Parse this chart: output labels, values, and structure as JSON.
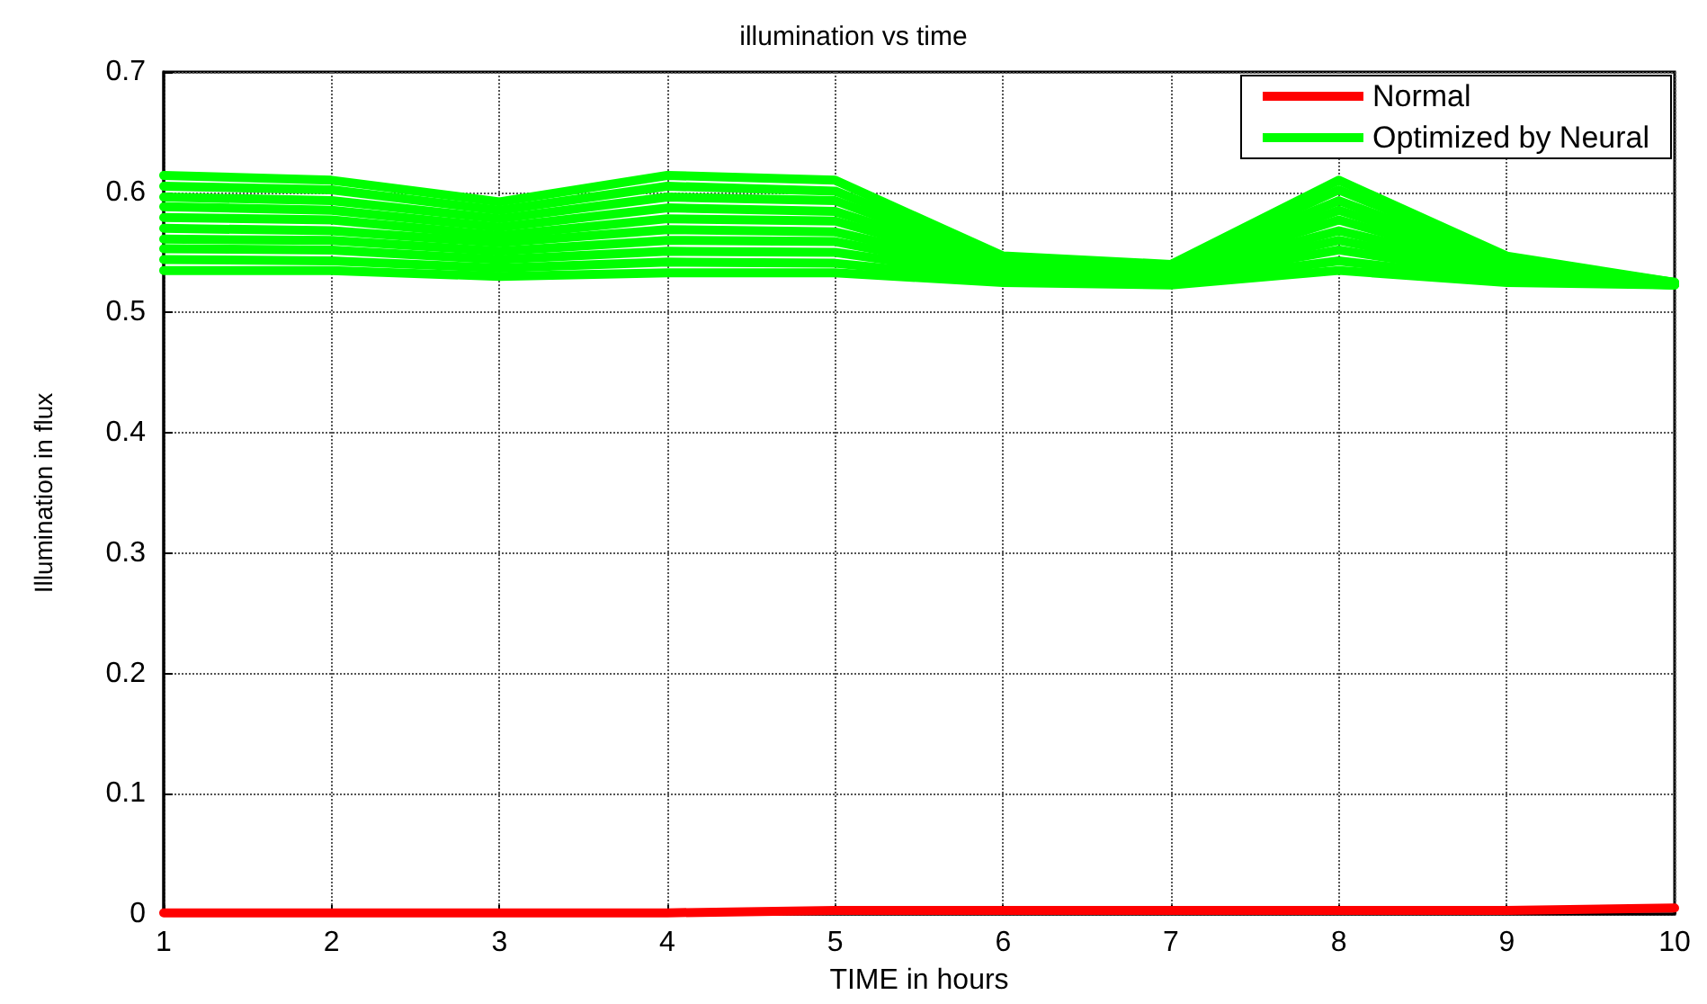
{
  "chart_data": {
    "type": "line",
    "title": "illumination vs time",
    "xlabel": "TIME in hours",
    "ylabel": "Illumination in flux",
    "x": [
      1,
      2,
      3,
      4,
      5,
      6,
      7,
      8,
      9,
      10
    ],
    "xlim": [
      1,
      10
    ],
    "xticks": [
      1,
      2,
      3,
      4,
      5,
      6,
      7,
      8,
      9,
      10
    ],
    "ylim": [
      0,
      0.7
    ],
    "yticks": [
      0,
      0.1,
      0.2,
      0.3,
      0.4,
      0.5,
      0.6,
      0.7
    ],
    "grid": true,
    "legend": "top right",
    "marker": "none",
    "line_style": "solid",
    "series": [
      {
        "name": "Normal",
        "color": "#ff0000",
        "values": [
          0.001,
          0.001,
          0.001,
          0.001,
          0.003,
          0.003,
          0.003,
          0.003,
          0.003,
          0.005
        ]
      },
      {
        "name": "Optimized by Neural",
        "color": "#00ff00",
        "values": [
          0.614,
          0.61,
          0.592,
          0.614,
          0.61,
          0.547,
          0.54,
          0.61,
          0.547,
          0.525
        ]
      },
      {
        "color": "#00ff00",
        "values": [
          0.605,
          0.602,
          0.585,
          0.605,
          0.601,
          0.545,
          0.538,
          0.602,
          0.545,
          0.525
        ]
      },
      {
        "color": "#00ff00",
        "values": [
          0.596,
          0.593,
          0.578,
          0.596,
          0.593,
          0.542,
          0.536,
          0.593,
          0.542,
          0.525
        ]
      },
      {
        "color": "#00ff00",
        "values": [
          0.588,
          0.585,
          0.571,
          0.587,
          0.584,
          0.54,
          0.534,
          0.585,
          0.54,
          0.524
        ]
      },
      {
        "color": "#00ff00",
        "values": [
          0.579,
          0.577,
          0.564,
          0.578,
          0.576,
          0.537,
          0.533,
          0.577,
          0.537,
          0.524
        ]
      },
      {
        "color": "#00ff00",
        "values": [
          0.57,
          0.568,
          0.558,
          0.569,
          0.567,
          0.535,
          0.531,
          0.568,
          0.535,
          0.524
        ]
      },
      {
        "color": "#00ff00",
        "values": [
          0.561,
          0.56,
          0.551,
          0.56,
          0.559,
          0.532,
          0.529,
          0.56,
          0.532,
          0.524
        ]
      },
      {
        "color": "#00ff00",
        "values": [
          0.553,
          0.552,
          0.544,
          0.551,
          0.55,
          0.53,
          0.527,
          0.552,
          0.53,
          0.523
        ]
      },
      {
        "color": "#00ff00",
        "values": [
          0.544,
          0.543,
          0.537,
          0.542,
          0.541,
          0.527,
          0.525,
          0.543,
          0.527,
          0.523
        ]
      },
      {
        "color": "#00ff00",
        "values": [
          0.535,
          0.535,
          0.53,
          0.533,
          0.533,
          0.525,
          0.523,
          0.535,
          0.525,
          0.523
        ]
      }
    ]
  }
}
